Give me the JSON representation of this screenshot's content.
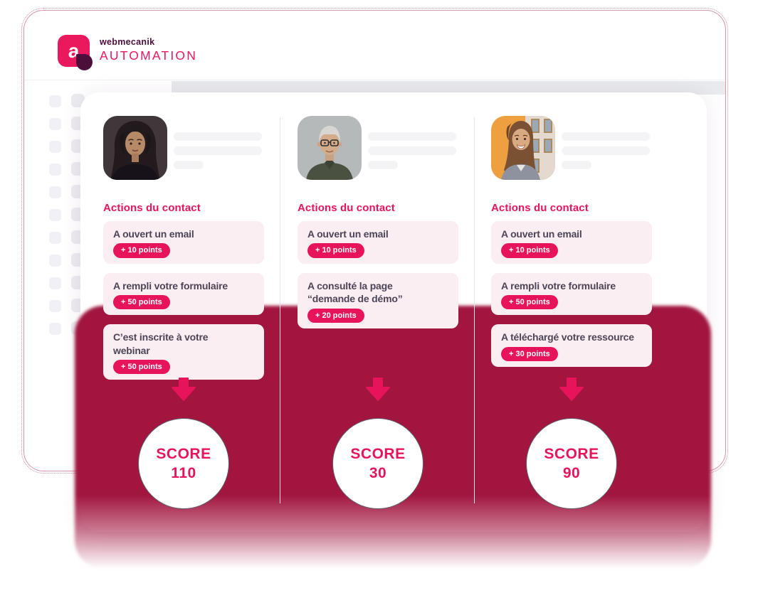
{
  "brand": {
    "logo_letter": "a",
    "name": "webmecanik",
    "product": "AUTOMATION"
  },
  "colors": {
    "accent": "#E7145C",
    "plum": "#4C0E3B",
    "dark_text": "#4C4557",
    "action_box_bg": "#FAEEF2",
    "shadow_crimson": "#A1153F"
  },
  "columns": [
    {
      "heading": "Actions du contact",
      "avatar_alt": "dark-haired-woman-portrait",
      "actions": [
        {
          "label": "A ouvert un email",
          "points": "+ 10 points"
        },
        {
          "label": "A rempli votre formulaire",
          "points": "+ 50 points"
        },
        {
          "label": "C’est inscrite à votre\nwebinar",
          "points": "+ 50 points"
        }
      ],
      "score_label": "SCORE",
      "score_value": "110"
    },
    {
      "heading": "Actions du contact",
      "avatar_alt": "older-man-with-glasses-portrait",
      "actions": [
        {
          "label": "A ouvert un email",
          "points": "+ 10 points"
        },
        {
          "label": "A consulté la page\n“demande de démo”",
          "points": "+ 20 points"
        }
      ],
      "score_label": "SCORE",
      "score_value": "30"
    },
    {
      "heading": "Actions du contact",
      "avatar_alt": "smiling-young-woman-portrait",
      "actions": [
        {
          "label": "A ouvert un email",
          "points": "+ 10 points"
        },
        {
          "label": "A rempli votre formulaire",
          "points": "+ 50 points"
        },
        {
          "label": "A téléchargé votre ressource",
          "points": "+ 30 points"
        }
      ],
      "score_label": "SCORE",
      "score_value": "90"
    }
  ]
}
